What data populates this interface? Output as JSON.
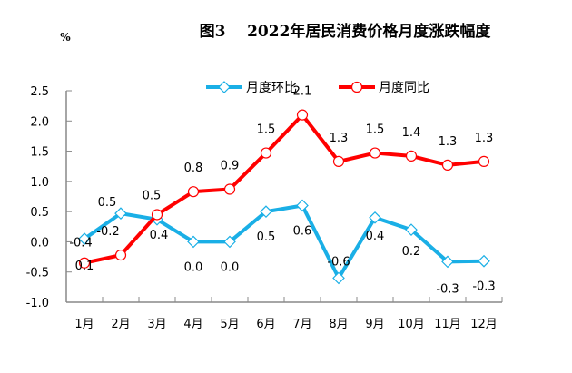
{
  "chart_data": {
    "type": "line",
    "title": "图3    2022年居民消费价格月度涨跌幅度",
    "ylabel": "%",
    "xlabel": "",
    "ylim": [
      -1.0,
      2.5
    ],
    "yticks": [
      "2.5",
      "2.0",
      "1.5",
      "1.0",
      "0.5",
      "0.0",
      "-0.5",
      "-1.0"
    ],
    "ytick_values": [
      2.5,
      2.0,
      1.5,
      1.0,
      0.5,
      0.0,
      -0.5,
      -1.0
    ],
    "categories": [
      "1月",
      "2月",
      "3月",
      "4月",
      "5月",
      "6月",
      "7月",
      "8月",
      "9月",
      "10月",
      "11月",
      "12月"
    ],
    "grid": false,
    "legend_position": "top",
    "series": [
      {
        "name": "月度环比",
        "color": "#1AAFE6",
        "marker": "diamond",
        "values": [
          0.05,
          0.47,
          0.37,
          0.0,
          0.0,
          0.5,
          0.6,
          -0.6,
          0.4,
          0.2,
          -0.33,
          -0.32
        ],
        "labels": [
          "0.1",
          "0.5",
          "0.4",
          "0.0",
          "0.0",
          "0.5",
          "0.6",
          "-0.6",
          "0.4",
          "0.2",
          "-0.3",
          "-0.3"
        ]
      },
      {
        "name": "月度同比",
        "color": "#FF0000",
        "marker": "circle",
        "values": [
          -0.35,
          -0.22,
          0.45,
          0.83,
          0.87,
          1.47,
          2.1,
          1.33,
          1.47,
          1.42,
          1.27,
          1.33
        ],
        "labels": [
          "-0.4",
          "-0.2",
          "0.5",
          "0.8",
          "0.9",
          "1.5",
          "2.1",
          "1.3",
          "1.5",
          "1.4",
          "1.3",
          "1.3"
        ]
      }
    ]
  }
}
